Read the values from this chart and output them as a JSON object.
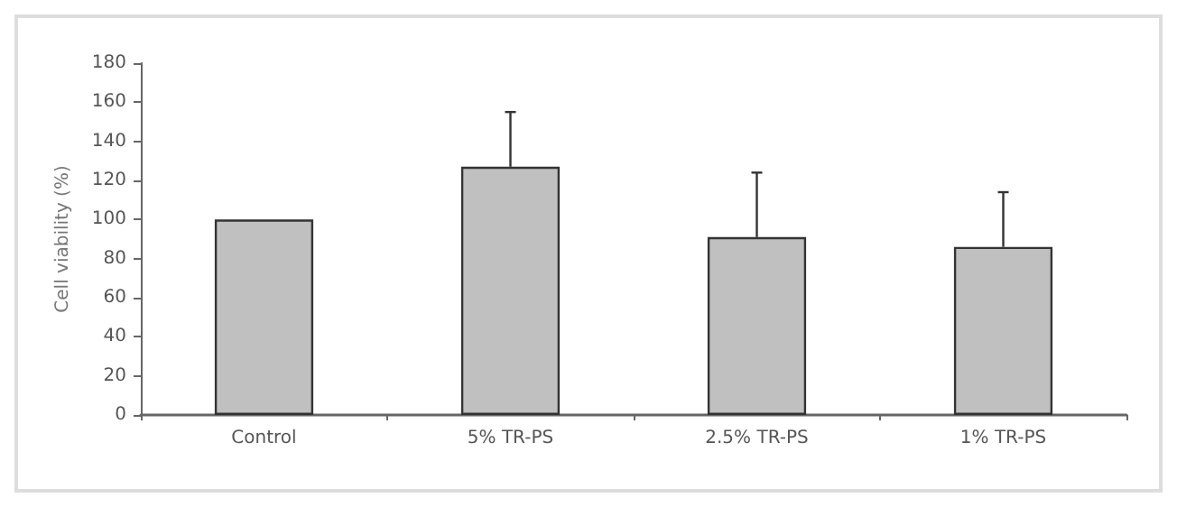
{
  "chart_data": {
    "type": "bar",
    "ylabel": "Cell viability (%)",
    "categories": [
      "Control",
      "5% TR-PS",
      "2.5% TR-PS",
      "1% TR-PS"
    ],
    "values": [
      100,
      127,
      91,
      86
    ],
    "color": "#c0c0c0",
    "errors": [
      null,
      [
        127,
        155
      ],
      [
        91,
        124
      ],
      [
        86,
        114
      ]
    ],
    "ylim": [
      0,
      180
    ],
    "yticks": [
      0,
      20,
      40,
      60,
      80,
      100,
      120,
      140,
      160,
      180
    ]
  }
}
